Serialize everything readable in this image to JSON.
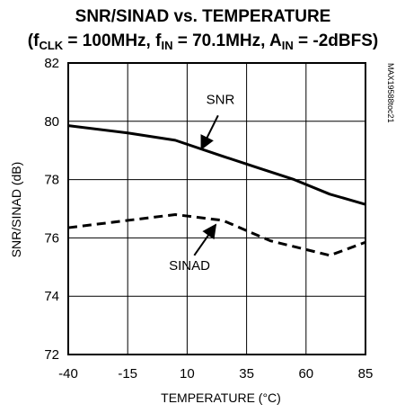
{
  "chart_data": {
    "type": "line",
    "title": "SNR/SINAD vs. TEMPERATURE",
    "subtitle": {
      "open": "(f",
      "clk_sub": "CLK",
      "mid1": " = 100MHz, f",
      "in_sub1": "IN",
      "mid2": " = 70.1MHz, A",
      "in_sub2": "IN",
      "end": " = -2dBFS)"
    },
    "xlabel": "TEMPERATURE (°C)",
    "ylabel": "SNR/SINAD (dB)",
    "xlim": [
      -40,
      85
    ],
    "ylim": [
      72,
      82
    ],
    "x_ticks": [
      -40,
      -15,
      10,
      35,
      60,
      85
    ],
    "y_ticks": [
      72,
      74,
      76,
      78,
      80,
      82
    ],
    "grid": true,
    "series": [
      {
        "name": "SNR",
        "style": "solid",
        "color": "#000000",
        "points": [
          [
            -40,
            79.85
          ],
          [
            -15,
            79.6
          ],
          [
            5,
            79.35
          ],
          [
            25,
            78.8
          ],
          [
            40,
            78.4
          ],
          [
            55,
            78.0
          ],
          [
            70,
            77.5
          ],
          [
            85,
            77.15
          ]
        ]
      },
      {
        "name": "SINAD",
        "style": "dashed",
        "color": "#000000",
        "points": [
          [
            -40,
            76.35
          ],
          [
            5,
            76.8
          ],
          [
            25,
            76.6
          ],
          [
            45,
            75.9
          ],
          [
            70,
            75.4
          ],
          [
            85,
            75.85
          ]
        ]
      }
    ],
    "annotations": [
      {
        "label": "SNR",
        "text_at": [
          24,
          80.75
        ],
        "arrow_from": [
          23,
          80.2
        ],
        "arrow_to": [
          16,
          79.05
        ]
      },
      {
        "label": "SINAD",
        "text_at": [
          11,
          75.05
        ],
        "arrow_from": [
          13,
          75.4
        ],
        "arrow_to": [
          22,
          76.45
        ]
      }
    ],
    "side_label": "MAX19588toc21"
  }
}
